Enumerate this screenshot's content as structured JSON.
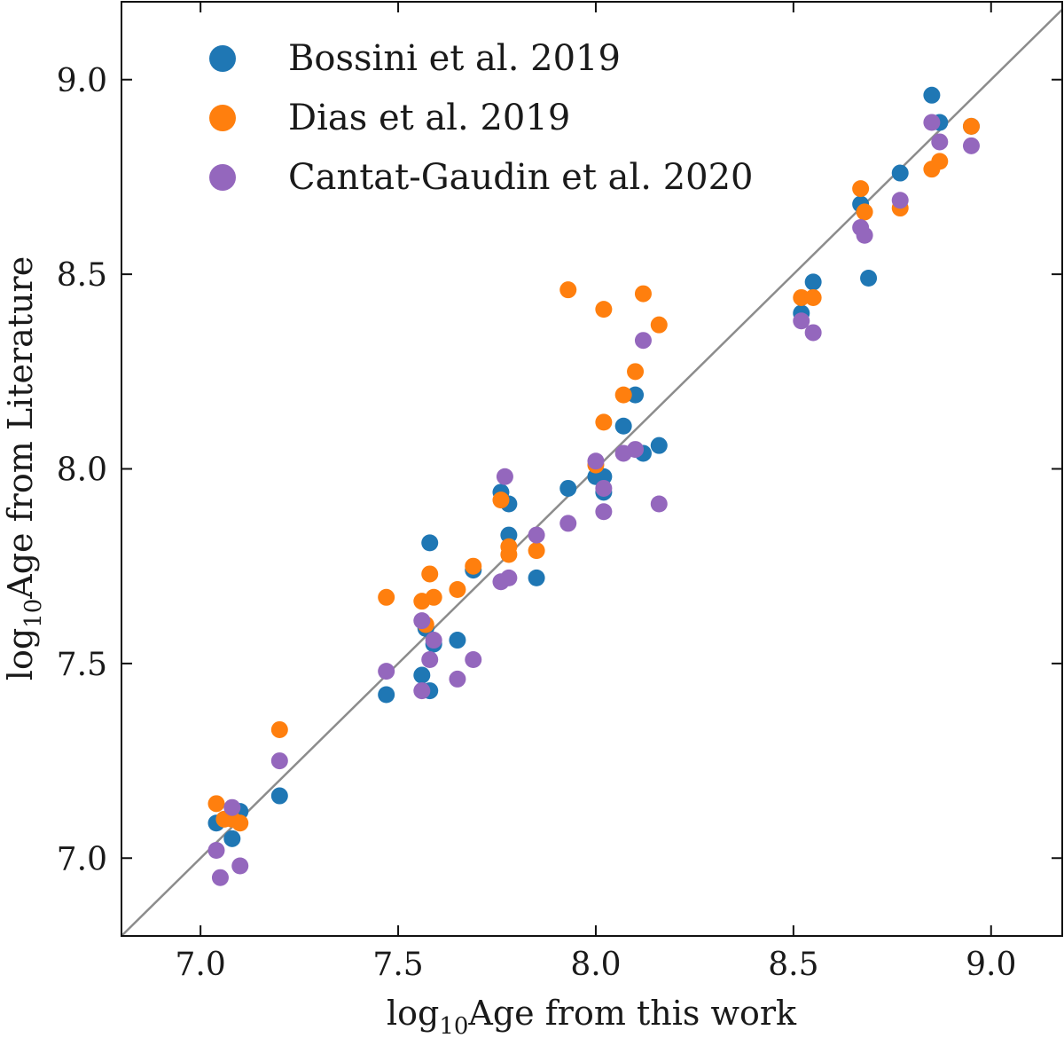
{
  "chart_data": {
    "type": "scatter",
    "title": "",
    "xlabel": {
      "base": "log",
      "sub": "10",
      "rest": "Age from this work"
    },
    "ylabel": {
      "base": "log",
      "sub": "10",
      "rest": "Age from Literature"
    },
    "xlim": [
      6.8,
      9.18
    ],
    "ylim": [
      6.8,
      9.2
    ],
    "xticks": [
      "7.0",
      "7.5",
      "8.0",
      "8.5",
      "9.0"
    ],
    "yticks": [
      "7.0",
      "7.5",
      "8.0",
      "8.5",
      "9.0"
    ],
    "legend_position": "top-left",
    "reference_line": {
      "label": "one-to-one",
      "color": "#8c8c8c"
    },
    "series": [
      {
        "name": "Bossini et al. 2019",
        "color": "#1f77b4",
        "points": [
          [
            7.04,
            7.09
          ],
          [
            7.08,
            7.05
          ],
          [
            7.1,
            7.12
          ],
          [
            7.2,
            7.16
          ],
          [
            7.47,
            7.42
          ],
          [
            7.56,
            7.47
          ],
          [
            7.57,
            7.59
          ],
          [
            7.58,
            7.43
          ],
          [
            7.58,
            7.81
          ],
          [
            7.59,
            7.55
          ],
          [
            7.65,
            7.56
          ],
          [
            7.69,
            7.74
          ],
          [
            7.76,
            7.94
          ],
          [
            7.78,
            7.91
          ],
          [
            7.78,
            7.83
          ],
          [
            7.85,
            7.72
          ],
          [
            7.93,
            7.95
          ],
          [
            8.0,
            7.98
          ],
          [
            8.02,
            7.94
          ],
          [
            8.02,
            7.98
          ],
          [
            8.07,
            8.11
          ],
          [
            8.1,
            8.19
          ],
          [
            8.12,
            8.04
          ],
          [
            8.16,
            8.06
          ],
          [
            8.52,
            8.4
          ],
          [
            8.55,
            8.48
          ],
          [
            8.67,
            8.68
          ],
          [
            8.69,
            8.49
          ],
          [
            8.77,
            8.76
          ],
          [
            8.85,
            8.96
          ],
          [
            8.87,
            8.89
          ],
          [
            8.95,
            8.88
          ]
        ]
      },
      {
        "name": "Dias et al. 2019",
        "color": "#ff7f0e",
        "points": [
          [
            7.04,
            7.14
          ],
          [
            7.06,
            7.1
          ],
          [
            7.08,
            7.1
          ],
          [
            7.1,
            7.09
          ],
          [
            7.2,
            7.33
          ],
          [
            7.47,
            7.67
          ],
          [
            7.56,
            7.66
          ],
          [
            7.57,
            7.6
          ],
          [
            7.58,
            7.73
          ],
          [
            7.59,
            7.67
          ],
          [
            7.65,
            7.69
          ],
          [
            7.69,
            7.75
          ],
          [
            7.76,
            7.92
          ],
          [
            7.78,
            7.8
          ],
          [
            7.78,
            7.78
          ],
          [
            7.85,
            7.79
          ],
          [
            7.93,
            8.46
          ],
          [
            8.0,
            8.01
          ],
          [
            8.02,
            8.12
          ],
          [
            8.02,
            8.41
          ],
          [
            8.07,
            8.19
          ],
          [
            8.1,
            8.25
          ],
          [
            8.12,
            8.45
          ],
          [
            8.16,
            8.37
          ],
          [
            8.52,
            8.44
          ],
          [
            8.55,
            8.44
          ],
          [
            8.67,
            8.72
          ],
          [
            8.68,
            8.66
          ],
          [
            8.77,
            8.67
          ],
          [
            8.85,
            8.77
          ],
          [
            8.87,
            8.79
          ],
          [
            8.95,
            8.88
          ]
        ]
      },
      {
        "name": "Cantat-Gaudin et al. 2020",
        "color": "#9467bd",
        "points": [
          [
            7.04,
            7.02
          ],
          [
            7.05,
            6.95
          ],
          [
            7.08,
            7.13
          ],
          [
            7.1,
            6.98
          ],
          [
            7.2,
            7.25
          ],
          [
            7.47,
            7.48
          ],
          [
            7.56,
            7.43
          ],
          [
            7.56,
            7.61
          ],
          [
            7.58,
            7.51
          ],
          [
            7.59,
            7.56
          ],
          [
            7.65,
            7.46
          ],
          [
            7.69,
            7.51
          ],
          [
            7.76,
            7.71
          ],
          [
            7.77,
            7.98
          ],
          [
            7.78,
            7.72
          ],
          [
            7.85,
            7.83
          ],
          [
            7.93,
            7.86
          ],
          [
            8.0,
            8.02
          ],
          [
            8.02,
            7.89
          ],
          [
            8.02,
            7.95
          ],
          [
            8.07,
            8.04
          ],
          [
            8.1,
            8.05
          ],
          [
            8.12,
            8.33
          ],
          [
            8.16,
            7.91
          ],
          [
            8.52,
            8.38
          ],
          [
            8.55,
            8.35
          ],
          [
            8.67,
            8.62
          ],
          [
            8.68,
            8.6
          ],
          [
            8.77,
            8.69
          ],
          [
            8.85,
            8.89
          ],
          [
            8.87,
            8.84
          ],
          [
            8.95,
            8.83
          ]
        ]
      }
    ]
  }
}
